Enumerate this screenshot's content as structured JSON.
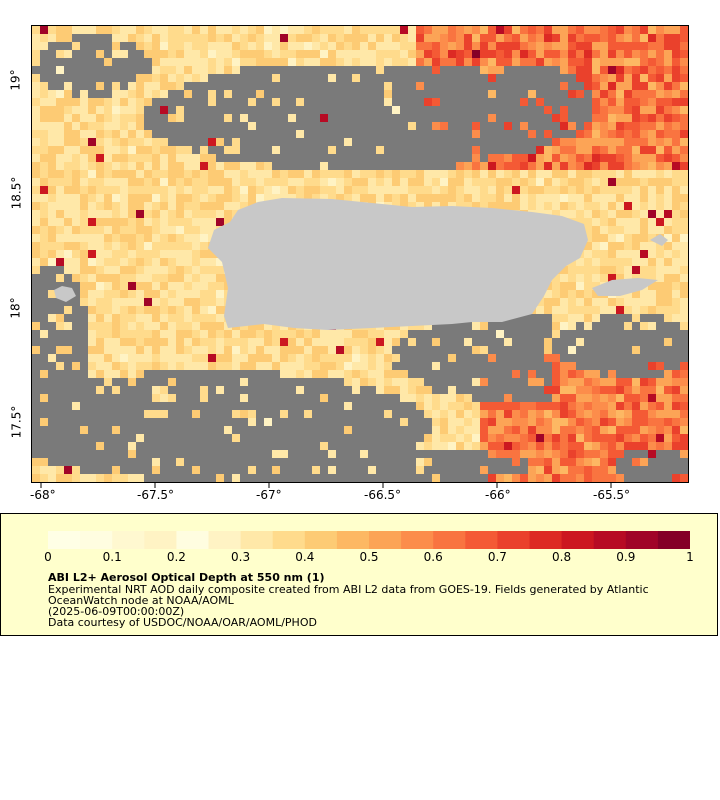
{
  "map": {
    "region": "Puerto Rico",
    "land_color": "#c8c8c8",
    "nodata_color": "#7a7a7a",
    "y_axis_labels": [
      "19°",
      "18.5°",
      "18°",
      "17.5°"
    ],
    "x_axis_labels": [
      "-68°",
      "-67.5°",
      "-67°",
      "-66.5°",
      "-66°",
      "-65.5°"
    ]
  },
  "legend": {
    "colorbar_ticks": [
      "0",
      "0.1",
      "0.2",
      "0.3",
      "0.4",
      "0.5",
      "0.6",
      "0.7",
      "0.8",
      "0.9",
      "1"
    ],
    "colors": [
      "#fffde0",
      "#fff3c4",
      "#ffe8a8",
      "#ffdb8c",
      "#fdcb74",
      "#fdb863",
      "#fca456",
      "#fc8d4b",
      "#f97440",
      "#f45a35",
      "#ea412c",
      "#dd2a24",
      "#cc1720",
      "#b70b24",
      "#a00428",
      "#840027"
    ],
    "title": "ABI L2+ Aerosol Optical Depth at 550 nm (1)",
    "line1": "Experimental NRT AOD daily composite created from ABI L2 data from GOES-19. Fields generated by Atlantic",
    "line2": "OceanWatch node at NOAA/AOML",
    "line3": "(2025-06-09T00:00:00Z)",
    "line4": "Data courtesy of USDOC/NOAA/OAR/AOML/PHOD"
  }
}
